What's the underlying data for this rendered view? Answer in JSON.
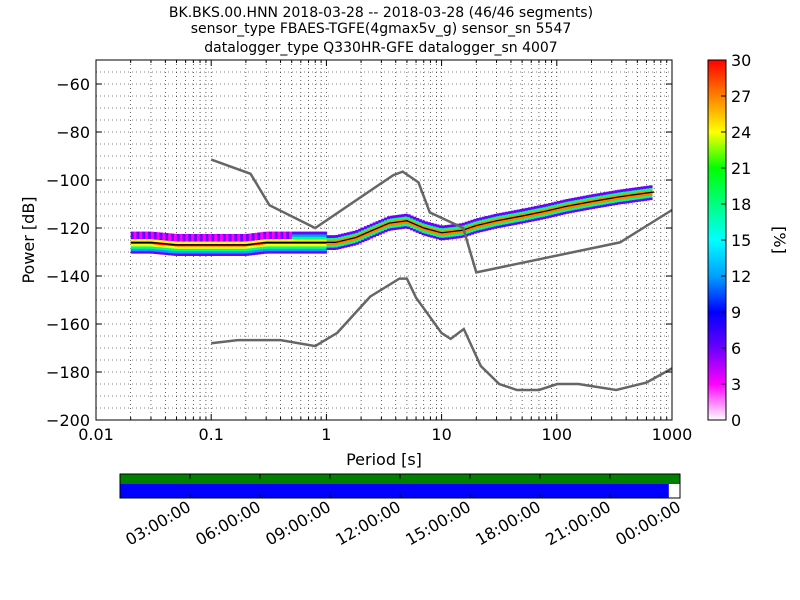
{
  "chart_data": {
    "type": "heatmap",
    "title_lines": [
      "BK.BKS.00.HNN   2018-03-28 -- 2018-03-28  (46/46 segments)",
      "sensor_type FBAES-TGFE(4gmax5v_g) sensor_sn 5547",
      "datalogger_type Q330HR-GFE datalogger_sn 4007"
    ],
    "xlabel": "Period [s]",
    "ylabel": "Power [dB]",
    "x_scale": "log",
    "xlim": [
      0.01,
      1000
    ],
    "ylim": [
      -200,
      -50
    ],
    "x_ticks": [
      0.01,
      0.1,
      1,
      10,
      100,
      1000
    ],
    "x_tick_labels": [
      "0.01",
      "0.1",
      "1",
      "10",
      "100",
      "1000"
    ],
    "y_ticks": [
      -60,
      -80,
      -100,
      -120,
      -140,
      -160,
      -180,
      -200
    ],
    "y_tick_labels": [
      "−60",
      "−80",
      "−100",
      "−120",
      "−140",
      "−160",
      "−180",
      "−200"
    ],
    "grid": true,
    "colorbar": {
      "label": "[%]",
      "range": [
        0,
        30
      ],
      "ticks": [
        0,
        3,
        6,
        9,
        12,
        15,
        18,
        21,
        24,
        27,
        30
      ],
      "colors": [
        "#ffffff",
        "#ff00ff",
        "#6a00ff",
        "#0000ff",
        "#00a0ff",
        "#00ffff",
        "#00ff80",
        "#00ff00",
        "#ffff00",
        "#ff8000",
        "#ff0000"
      ]
    },
    "noise_model_color": "#666666",
    "nhnm": {
      "x": [
        0.1,
        0.22,
        0.32,
        0.8,
        3.8,
        4.6,
        6.3,
        7.9,
        15.4,
        20,
        354,
        1000
      ],
      "y": [
        -91.5,
        -97.4,
        -110.5,
        -120,
        -98,
        -96.5,
        -101,
        -113.5,
        -120,
        -138.5,
        -126,
        -112.5
      ]
    },
    "nlnm": {
      "x": [
        0.1,
        0.17,
        0.4,
        0.8,
        1.24,
        2.4,
        4.3,
        5,
        6,
        10,
        12,
        15.6,
        21.9,
        31.6,
        45,
        70,
        101,
        154,
        328,
        600,
        1000
      ],
      "y": [
        -168,
        -166.7,
        -166.7,
        -169.2,
        -163.7,
        -148.6,
        -141.1,
        -141.1,
        -149,
        -163.8,
        -166.2,
        -162.1,
        -177.5,
        -185,
        -187.5,
        -187.5,
        -185,
        -185,
        -187.5,
        -184.4,
        -178.5
      ]
    },
    "psd_mode": {
      "x": [
        0.02,
        0.03,
        0.05,
        0.08,
        0.12,
        0.2,
        0.3,
        0.5,
        0.8,
        1.2,
        1.8,
        2.5,
        3.5,
        5,
        7,
        10,
        15,
        20,
        30,
        50,
        80,
        120,
        200,
        350,
        700
      ],
      "y": [
        -126,
        -126,
        -127,
        -127,
        -127,
        -127,
        -126,
        -126,
        -126,
        -126,
        -124,
        -121,
        -118,
        -117,
        -120,
        -122,
        -121,
        -119,
        -117,
        -115,
        -113,
        -111,
        -109,
        -107,
        -105
      ]
    },
    "timeline": {
      "tick_labels": [
        "03:00:00",
        "06:00:00",
        "09:00:00",
        "12:00:00",
        "15:00:00",
        "18:00:00",
        "21:00:00",
        "00:00:00"
      ],
      "data_coverage_color": "#008000",
      "psd_coverage_color": "#0000ff",
      "psd_coverage_fraction": 0.98
    }
  }
}
